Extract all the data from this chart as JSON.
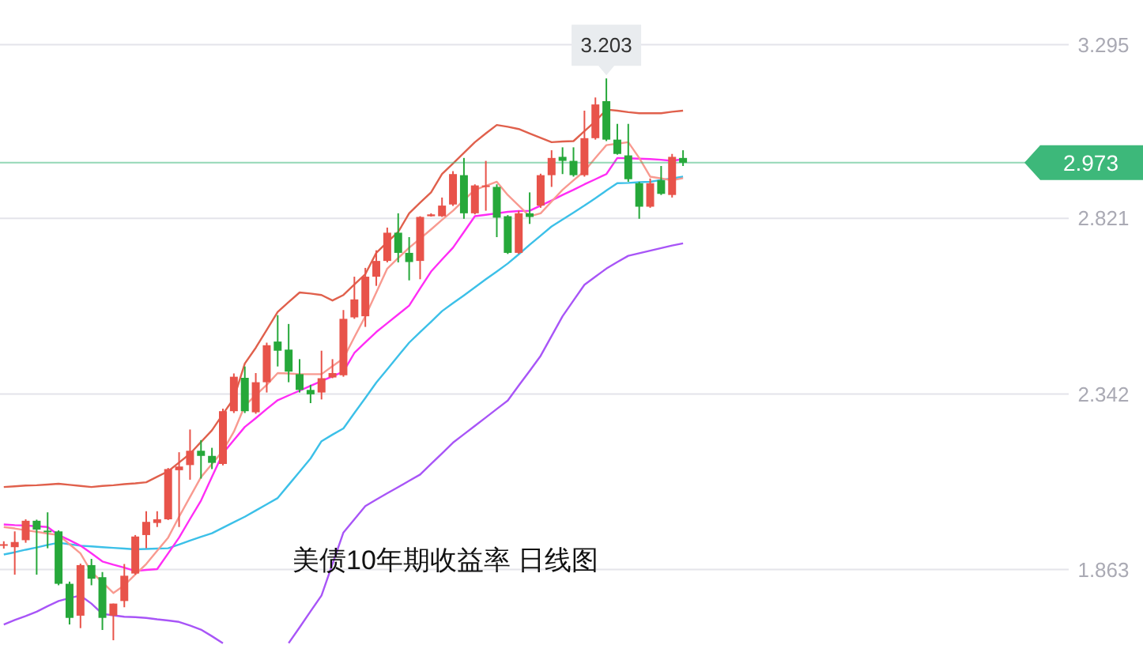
{
  "chart_data": {
    "type": "candlestick",
    "title": "美债10年期收益率 日线图",
    "categories": [
      null,
      null,
      null,
      null,
      null,
      null,
      null,
      null,
      null,
      null,
      null,
      null,
      null,
      null,
      null,
      null,
      null,
      null,
      null,
      null,
      null,
      null,
      null,
      null,
      null,
      null,
      null,
      null,
      null,
      null,
      null,
      null,
      null,
      null,
      null,
      null,
      null,
      null,
      null,
      null,
      null,
      null,
      null,
      null,
      null,
      null,
      null,
      null,
      null,
      null,
      null,
      null,
      null,
      null,
      null,
      null,
      null,
      null,
      null,
      null,
      null,
      null,
      null
    ],
    "ohlc": [
      [
        1.93,
        1.94,
        1.92,
        1.932
      ],
      [
        1.924,
        1.967,
        1.849,
        1.938
      ],
      [
        1.943,
        2.0,
        1.936,
        1.996
      ],
      [
        1.996,
        1.999,
        1.849,
        1.972
      ],
      [
        1.969,
        2.019,
        1.921,
        1.965
      ],
      [
        1.967,
        1.97,
        1.82,
        1.824
      ],
      [
        1.824,
        1.83,
        1.713,
        1.731
      ],
      [
        1.737,
        1.879,
        1.703,
        1.875
      ],
      [
        1.875,
        1.892,
        1.82,
        1.838
      ],
      [
        1.842,
        1.856,
        1.698,
        1.731
      ],
      [
        1.737,
        1.77,
        1.67,
        1.77
      ],
      [
        1.777,
        1.878,
        1.76,
        1.846
      ],
      [
        1.852,
        1.957,
        1.849,
        1.953
      ],
      [
        1.957,
        2.022,
        1.921,
        1.993
      ],
      [
        1.99,
        2.022,
        1.979,
        2.0
      ],
      [
        2.0,
        2.14,
        1.998,
        2.137
      ],
      [
        2.134,
        2.183,
        1.979,
        2.144
      ],
      [
        2.148,
        2.245,
        2.108,
        2.187
      ],
      [
        2.187,
        2.216,
        2.111,
        2.173
      ],
      [
        2.173,
        2.195,
        2.137,
        2.154
      ],
      [
        2.151,
        2.302,
        2.147,
        2.295
      ],
      [
        2.295,
        2.398,
        2.29,
        2.389
      ],
      [
        2.386,
        2.417,
        2.29,
        2.295
      ],
      [
        2.292,
        2.399,
        2.288,
        2.374
      ],
      [
        2.374,
        2.482,
        2.346,
        2.475
      ],
      [
        2.485,
        2.557,
        2.417,
        2.46
      ],
      [
        2.463,
        2.533,
        2.374,
        2.403
      ],
      [
        2.396,
        2.437,
        2.346,
        2.353
      ],
      [
        2.353,
        2.367,
        2.317,
        2.341
      ],
      [
        2.346,
        2.46,
        2.327,
        2.385
      ],
      [
        2.387,
        2.437,
        2.385,
        2.399
      ],
      [
        2.393,
        2.571,
        2.389,
        2.547
      ],
      [
        2.551,
        2.662,
        2.547,
        2.6
      ],
      [
        2.554,
        2.686,
        2.525,
        2.662
      ],
      [
        2.662,
        2.734,
        2.637,
        2.705
      ],
      [
        2.705,
        2.796,
        2.701,
        2.782
      ],
      [
        2.782,
        2.835,
        2.701,
        2.727
      ],
      [
        2.727,
        2.77,
        2.652,
        2.702
      ],
      [
        2.705,
        2.827,
        2.655,
        2.825
      ],
      [
        2.827,
        2.835,
        2.826,
        2.832
      ],
      [
        2.827,
        2.878,
        2.825,
        2.856
      ],
      [
        2.859,
        2.95,
        2.855,
        2.942
      ],
      [
        2.939,
        2.986,
        2.82,
        2.835
      ],
      [
        2.835,
        2.914,
        2.832,
        2.911
      ],
      [
        2.907,
        2.978,
        2.842,
        2.911
      ],
      [
        2.907,
        2.914,
        2.77,
        2.823
      ],
      [
        2.827,
        2.83,
        2.724,
        2.727
      ],
      [
        2.727,
        2.842,
        2.724,
        2.835
      ],
      [
        2.835,
        2.892,
        2.806,
        2.825
      ],
      [
        2.856,
        2.943,
        2.85,
        2.939
      ],
      [
        2.939,
        3.007,
        2.907,
        2.986
      ],
      [
        2.989,
        3.015,
        2.942,
        2.978
      ],
      [
        2.978,
        3.015,
        2.935,
        2.939
      ],
      [
        2.939,
        3.115,
        2.935,
        3.04
      ],
      [
        3.04,
        3.151,
        3.036,
        3.132
      ],
      [
        3.141,
        3.203,
        3.032,
        3.036
      ],
      [
        3.036,
        3.079,
        2.995,
        2.997
      ],
      [
        2.993,
        3.079,
        2.921,
        2.928
      ],
      [
        2.917,
        2.921,
        2.82,
        2.853
      ],
      [
        2.853,
        2.93,
        2.85,
        2.917
      ],
      [
        2.925,
        2.964,
        2.885,
        2.888
      ],
      [
        2.885,
        2.997,
        2.878,
        2.989
      ],
      [
        2.986,
        3.007,
        2.964,
        2.973
      ]
    ],
    "colors": [
      "#e8534a",
      "#e8534a",
      "#e8534a",
      "#26a83a",
      "#26a83a",
      "#26a83a",
      "#26a83a",
      "#e8534a",
      "#26a83a",
      "#26a83a",
      "#e8534a",
      "#e8534a",
      "#e8534a",
      "#e8534a",
      "#e8534a",
      "#e8534a",
      "#e8534a",
      "#e8534a",
      "#26a83a",
      "#26a83a",
      "#e8534a",
      "#e8534a",
      "#26a83a",
      "#e8534a",
      "#e8534a",
      "#26a83a",
      "#26a83a",
      "#26a83a",
      "#26a83a",
      "#e8534a",
      "#e8534a",
      "#e8534a",
      "#e8534a",
      "#e8534a",
      "#e8534a",
      "#e8534a",
      "#26a83a",
      "#26a83a",
      "#e8534a",
      "#e8534a",
      "#e8534a",
      "#e8534a",
      "#26a83a",
      "#e8534a",
      "#e8534a",
      "#26a83a",
      "#26a83a",
      "#e8534a",
      "#26a83a",
      "#e8534a",
      "#e8534a",
      "#26a83a",
      "#26a83a",
      "#e8534a",
      "#e8534a",
      "#26a83a",
      "#26a83a",
      "#26a83a",
      "#26a83a",
      "#e8534a",
      "#26a83a",
      "#e8534a",
      "#26a83a"
    ],
    "series": [
      {
        "type": "line",
        "color": "#e0604c",
        "values": [
          2.088,
          2.09,
          2.092,
          2.093,
          2.095,
          2.097,
          2.094,
          2.091,
          2.088,
          2.091,
          2.093,
          2.096,
          2.098,
          2.101,
          2.116,
          2.131,
          2.155,
          2.179,
          2.211,
          2.243,
          2.287,
          2.33,
          2.425,
          2.468,
          2.517,
          2.566,
          2.593,
          2.619,
          2.616,
          2.612,
          2.597,
          2.612,
          2.641,
          2.669,
          2.727,
          2.756,
          2.784,
          2.835,
          2.864,
          2.892,
          2.942,
          2.971,
          3.0,
          3.029,
          3.053,
          3.076,
          3.071,
          3.065,
          3.053,
          3.041,
          3.029,
          3.031,
          3.032,
          3.059,
          3.086,
          3.118,
          3.115,
          3.111,
          3.108,
          3.108,
          3.108,
          3.112,
          3.115
        ]
      },
      {
        "type": "line",
        "color": "#a855f7",
        "values": [
          1.713,
          1.725,
          1.736,
          1.748,
          1.763,
          1.777,
          1.785,
          1.792,
          1.77,
          1.742,
          1.738,
          1.734,
          1.733,
          1.731,
          1.727,
          1.724,
          1.72,
          1.71,
          1.699,
          1.681,
          1.662,
          null,
          null,
          null,
          null,
          null,
          1.662,
          1.705,
          1.749,
          1.792,
          1.878,
          1.964,
          2.0,
          2.036,
          2.054,
          2.071,
          2.088,
          2.105,
          2.122,
          2.151,
          2.18,
          2.209,
          2.232,
          2.255,
          2.278,
          2.301,
          2.324,
          2.365,
          2.405,
          2.446,
          2.5,
          2.554,
          2.597,
          2.64,
          2.662,
          2.684,
          2.702,
          2.719,
          2.726,
          2.733,
          2.74,
          2.747,
          2.753
        ]
      },
      {
        "type": "line",
        "color": "#3cc0e8",
        "values": [
          1.904,
          1.91,
          1.917,
          1.923,
          1.93,
          1.936,
          1.932,
          1.928,
          1.926,
          1.924,
          1.922,
          1.92,
          1.918,
          1.919,
          1.92,
          1.921,
          1.931,
          1.942,
          1.952,
          1.962,
          1.977,
          1.992,
          2.007,
          2.024,
          2.041,
          2.058,
          2.094,
          2.13,
          2.166,
          2.213,
          2.231,
          2.248,
          2.29,
          2.331,
          2.373,
          2.409,
          2.446,
          2.482,
          2.511,
          2.539,
          2.568,
          2.59,
          2.611,
          2.633,
          2.655,
          2.676,
          2.698,
          2.723,
          2.749,
          2.774,
          2.799,
          2.818,
          2.837,
          2.856,
          2.876,
          2.897,
          2.917,
          2.918,
          2.92,
          2.921,
          2.926,
          2.93,
          2.935
        ]
      },
      {
        "type": "line",
        "color": "#ff2df5",
        "values": [
          1.986,
          1.984,
          1.983,
          1.981,
          1.979,
          1.957,
          1.943,
          1.928,
          1.907,
          1.885,
          1.876,
          1.868,
          1.859,
          1.862,
          1.864,
          1.907,
          1.95,
          2.001,
          2.051,
          2.116,
          2.18,
          2.216,
          2.252,
          2.276,
          2.301,
          2.325,
          2.338,
          2.351,
          2.364,
          2.377,
          2.39,
          2.403,
          2.454,
          2.483,
          2.511,
          2.535,
          2.559,
          2.583,
          2.63,
          2.676,
          2.709,
          2.741,
          2.784,
          2.827,
          2.831,
          2.835,
          2.839,
          2.841,
          2.842,
          2.856,
          2.87,
          2.885,
          2.899,
          2.914,
          2.928,
          2.942,
          2.986,
          2.985,
          2.984,
          2.983,
          2.981,
          2.978,
          2.983
        ]
      },
      {
        "type": "line",
        "color": "#f89a90",
        "values": [
          1.979,
          1.975,
          1.97,
          1.966,
          1.961,
          1.957,
          1.932,
          1.907,
          1.856,
          1.828,
          1.799,
          1.82,
          1.849,
          1.878,
          1.914,
          1.95,
          2.007,
          2.061,
          2.115,
          2.151,
          2.187,
          2.239,
          2.31,
          2.339,
          2.367,
          2.399,
          2.398,
          2.396,
          2.396,
          2.396,
          2.418,
          2.439,
          2.497,
          2.554,
          2.619,
          2.684,
          2.713,
          2.741,
          2.766,
          2.791,
          2.817,
          2.842,
          2.871,
          2.899,
          2.91,
          2.921,
          2.885,
          2.856,
          2.827,
          2.835,
          2.867,
          2.899,
          2.925,
          2.95,
          2.986,
          3.021,
          3.025,
          3.029,
          2.986,
          2.935,
          2.93,
          2.925,
          2.931
        ]
      }
    ],
    "ylim": [
      1.657,
      3.417
    ],
    "yticks": [
      1.863,
      2.342,
      2.821,
      3.295
    ],
    "grid": "y",
    "tick_labels": "y",
    "ref_lines": [
      {
        "axis": "y",
        "value": 2.973,
        "label": "2.973",
        "color": "#3db87a"
      }
    ],
    "annotations": [
      {
        "text": "3.203",
        "y": 3.203
      }
    ]
  }
}
